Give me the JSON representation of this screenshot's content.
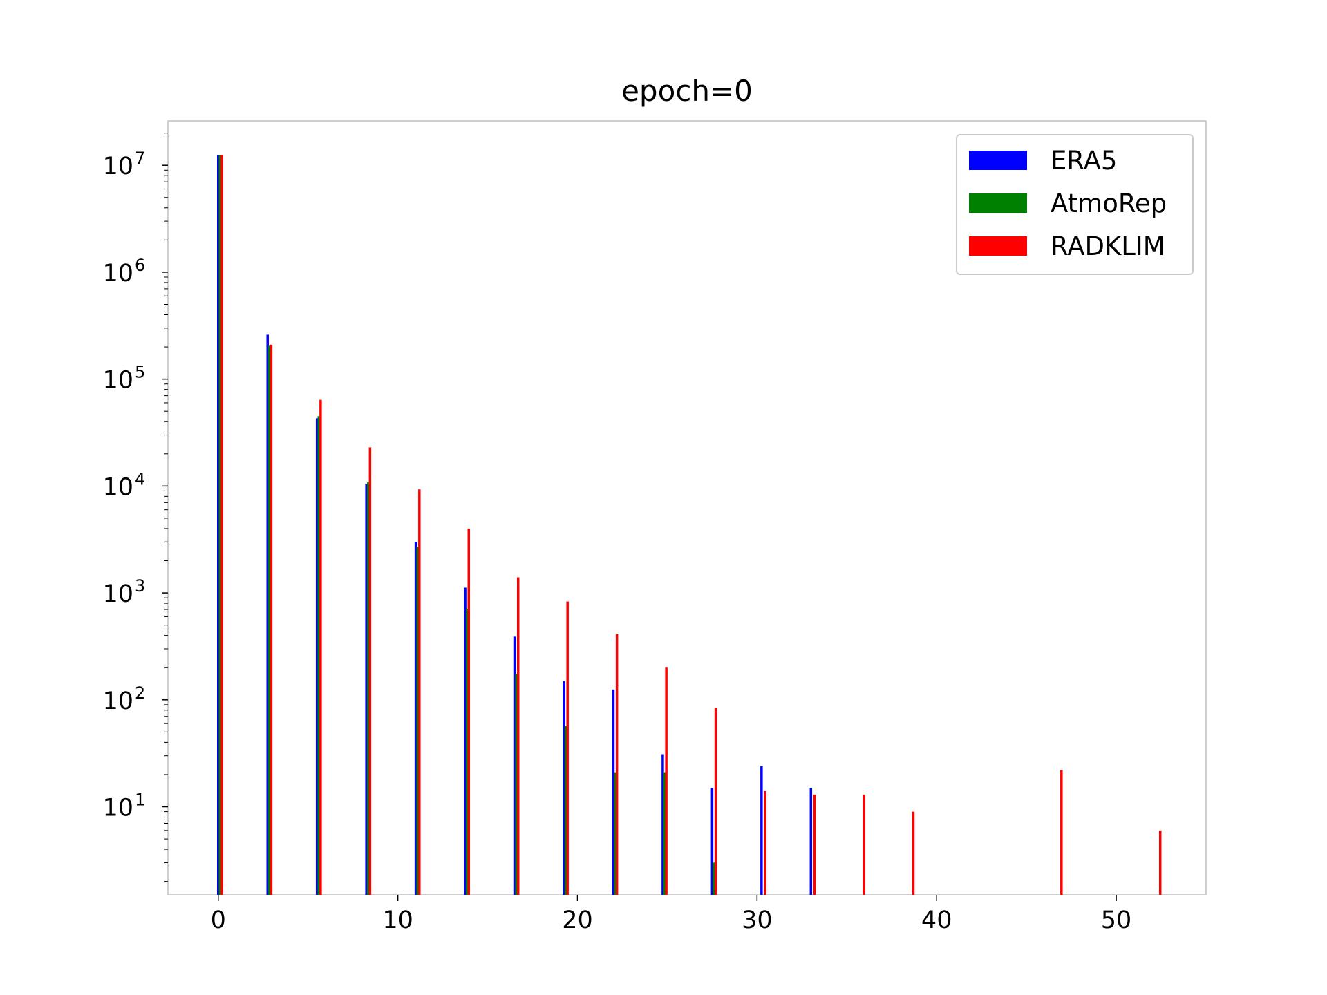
{
  "chart_data": {
    "type": "bar",
    "title": "epoch=0",
    "xlabel": "",
    "ylabel": "",
    "yscale": "log",
    "xlim": [
      -2.8,
      55
    ],
    "ylim": [
      1.5,
      26000000
    ],
    "x_ticks": [
      0,
      10,
      20,
      30,
      40,
      50
    ],
    "y_ticks": [
      {
        "base": "10",
        "exp": "1",
        "value": 10
      },
      {
        "base": "10",
        "exp": "2",
        "value": 100
      },
      {
        "base": "10",
        "exp": "3",
        "value": 1000
      },
      {
        "base": "10",
        "exp": "4",
        "value": 10000
      },
      {
        "base": "10",
        "exp": "5",
        "value": 100000
      },
      {
        "base": "10",
        "exp": "6",
        "value": 1000000
      },
      {
        "base": "10",
        "exp": "7",
        "value": 10000000
      }
    ],
    "legend_position": "top-right",
    "series": [
      {
        "name": "ERA5",
        "color": "#0000ff",
        "x": [
          0.0,
          2.75,
          5.5,
          8.25,
          11.0,
          13.75,
          16.5,
          19.25,
          22.0,
          24.75,
          27.5,
          30.25,
          33.0
        ],
        "values": [
          12500000,
          260000,
          43000,
          10400,
          3000,
          1120,
          390,
          150,
          125,
          31,
          15,
          24,
          15
        ]
      },
      {
        "name": "AtmoRep",
        "color": "#008000",
        "x": [
          0.1,
          2.85,
          5.6,
          8.35,
          11.1,
          13.85,
          16.6,
          19.35,
          22.1,
          24.85,
          27.6
        ],
        "values": [
          12500000,
          205000,
          45000,
          10800,
          2700,
          710,
          175,
          57,
          21,
          21,
          3
        ]
      },
      {
        "name": "RADKLIM",
        "color": "#ff0000",
        "x": [
          0.2,
          2.95,
          5.7,
          8.45,
          11.2,
          13.95,
          16.7,
          19.45,
          22.2,
          24.95,
          27.7,
          30.45,
          33.2,
          35.95,
          38.7,
          46.95,
          52.45
        ],
        "values": [
          12500000,
          210000,
          64000,
          23000,
          9300,
          4000,
          1400,
          830,
          410,
          200,
          84,
          14,
          13,
          13,
          9,
          22,
          6
        ]
      }
    ]
  }
}
